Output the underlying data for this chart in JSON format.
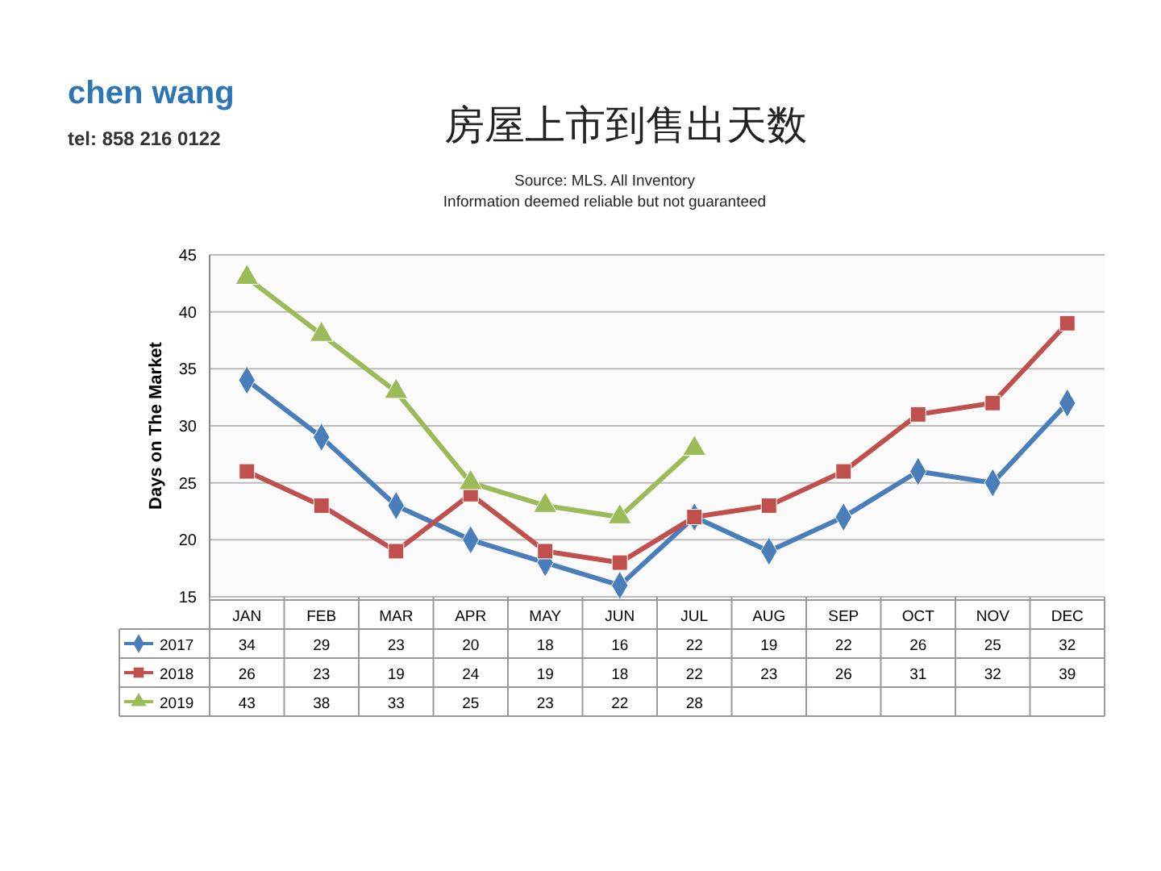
{
  "chart_data": {
    "type": "line",
    "title": "房屋上市到售出天数",
    "subtitle": "Source: MLS. All Inventory\nInformation deemed reliable but not guaranteed",
    "ylabel": "Days on The Market",
    "annotations": [
      "chen wang",
      "tel: 858 216 0122"
    ],
    "categories": [
      "JAN",
      "FEB",
      "MAR",
      "APR",
      "MAY",
      "JUN",
      "JUL",
      "AUG",
      "SEP",
      "OCT",
      "NOV",
      "DEC"
    ],
    "series": [
      {
        "name": "2017",
        "color": "#4a7ebb",
        "marker": "diamond",
        "values": [
          34,
          29,
          23,
          20,
          18,
          16,
          22,
          19,
          22,
          26,
          25,
          32
        ]
      },
      {
        "name": "2018",
        "color": "#c0504d",
        "marker": "square",
        "values": [
          26,
          23,
          19,
          24,
          19,
          18,
          22,
          23,
          26,
          31,
          32,
          39
        ]
      },
      {
        "name": "2019",
        "color": "#9bbb59",
        "marker": "triangle",
        "values": [
          43,
          38,
          33,
          25,
          23,
          22,
          28,
          null,
          null,
          null,
          null,
          null
        ]
      }
    ],
    "ylim": [
      15,
      45
    ],
    "yticks": [
      15,
      20,
      25,
      30,
      35,
      40,
      45
    ],
    "grid": "y",
    "legend": "bottom",
    "data_labels": true,
    "line_style": "solid"
  }
}
